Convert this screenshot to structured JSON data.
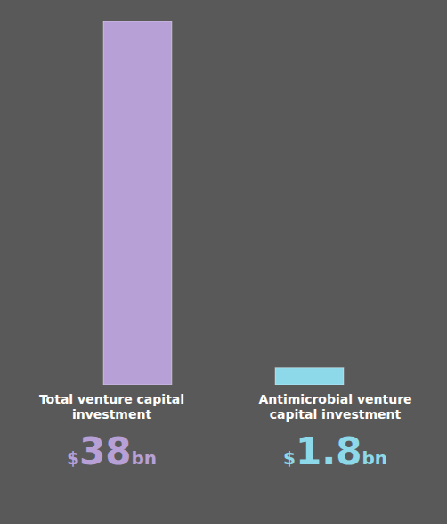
{
  "chart_data": {
    "type": "bar",
    "categories": [
      "Total venture capital investment",
      "Antimicrobial venture capital investment"
    ],
    "values": [
      38,
      1.8
    ],
    "value_labels": [
      "$38bn",
      "$1.8bn"
    ],
    "colors": [
      "#b7a0d6",
      "#8dd9ea"
    ],
    "ylim": [
      0,
      38
    ],
    "data_labels": true,
    "tick_labels": false
  }
}
